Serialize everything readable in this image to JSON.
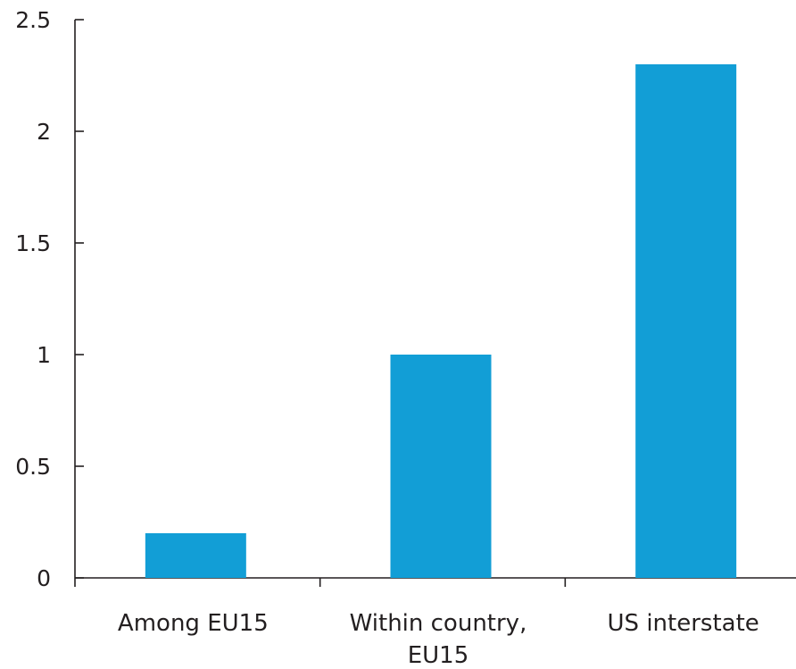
{
  "chart_data": {
    "type": "bar",
    "categories": [
      [
        "Among EU15"
      ],
      [
        "Within country,",
        "EU15"
      ],
      [
        "US interstate"
      ]
    ],
    "values": [
      0.2,
      1.0,
      2.3
    ],
    "ylim": [
      0,
      2.5
    ],
    "yticks": [
      "0",
      "0.5",
      "1",
      "1.5",
      "2",
      "2.5"
    ],
    "bar_color": "#129ed6",
    "axis_color": "#231f20",
    "grid": false,
    "legend": "none"
  }
}
